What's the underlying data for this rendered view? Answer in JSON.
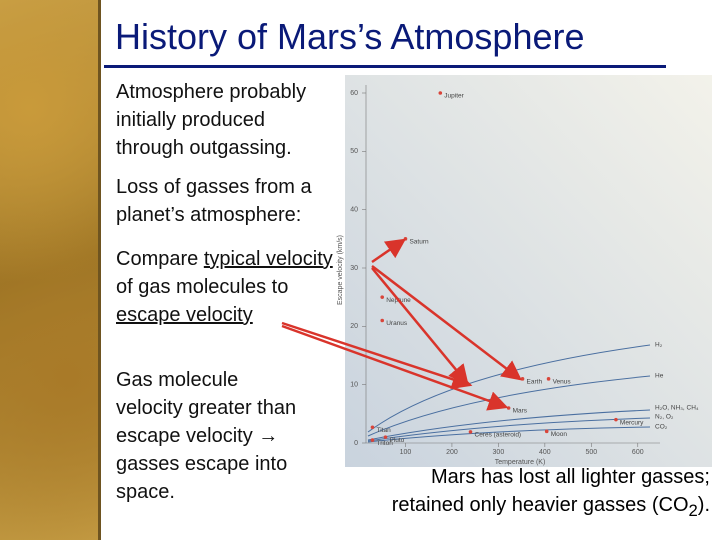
{
  "title": "History of Mars’s Atmosphere",
  "bullets": [
    [
      "Atmosphere probably",
      "initially produced",
      "through outgassing."
    ],
    [
      "Loss of gasses from a",
      "planet’s atmosphere:"
    ],
    [
      "Compare ",
      "typical velocity",
      "of gas molecules to",
      "escape velocity"
    ],
    [
      "Gas molecule",
      "velocity greater than",
      "escape velocity → ",
      "gasses escape into",
      "space."
    ]
  ],
  "caption": {
    "line1": "Mars has lost all lighter gasses;",
    "line2": "retained only heavier gasses (CO",
    "sub": "2",
    "end": ")."
  },
  "chart_data": {
    "type": "scatter",
    "x_label": "Temperature (K)",
    "y_label": "Escape velocity (km/s)",
    "xlim": [
      0,
      650
    ],
    "ylim": [
      0,
      60
    ],
    "xticks": [
      100,
      200,
      300,
      400,
      500,
      600
    ],
    "yticks": [
      0,
      10,
      20,
      30,
      40,
      50,
      60
    ],
    "color": "#d9453a",
    "labels": [
      "Jupiter",
      "Saturn",
      "Neptune",
      "Uranus",
      "Earth",
      "Venus",
      "Mars",
      "Mercury",
      "Moon",
      "Titan",
      "Triton",
      "Pluto",
      "Ceres (asteroid)"
    ],
    "x": [
      175,
      100,
      50,
      50,
      352,
      408,
      322,
      553,
      404,
      29,
      29,
      57,
      240
    ],
    "values": [
      60,
      35,
      25,
      21,
      11,
      11,
      6,
      4,
      2,
      2.7,
      0.5,
      1,
      1.9
    ],
    "curve_labels": [
      "H₂",
      "He",
      "H₂O, NH₃, CH₄",
      "N₂, O₂",
      "CO₂"
    ]
  }
}
